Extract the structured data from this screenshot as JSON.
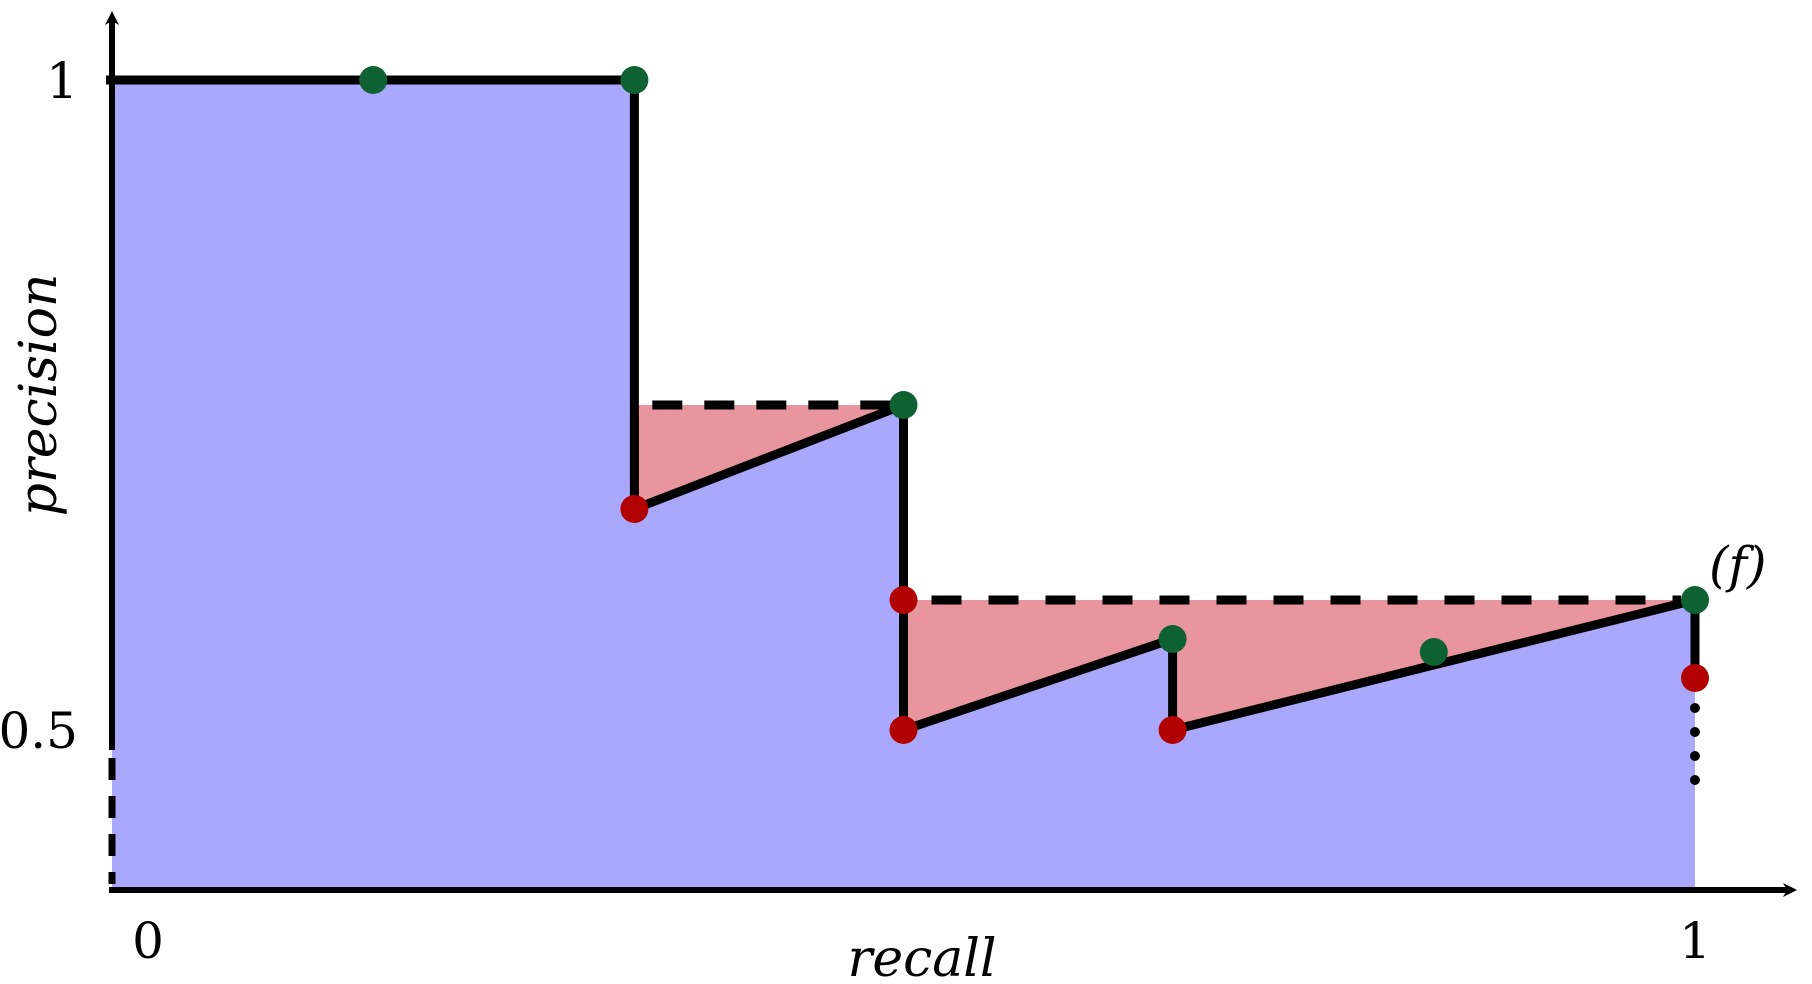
{
  "chart_data": {
    "type": "area",
    "xlabel": "recall",
    "ylabel": "precision",
    "xlim": [
      0,
      1
    ],
    "ylim": [
      0.38,
      1.06
    ],
    "x_ticks": [
      {
        "value": 0,
        "label": "0"
      },
      {
        "value": 1,
        "label": "1"
      }
    ],
    "y_ticks": [
      {
        "value": 1,
        "label": "1"
      },
      {
        "value": 0.5,
        "label": "0.5"
      }
    ],
    "grid": false,
    "legend": "none",
    "colors": {
      "area_under_curve": "#aaa8fd",
      "interpolated_gap": "#e9959e",
      "curve": "#000000",
      "point_positive": "#0e6130",
      "point_negative": "#b10101"
    },
    "pr_curve": [
      {
        "x": 0.0,
        "y": 1.0
      },
      {
        "x": 0.33,
        "y": 1.0
      },
      {
        "x": 0.33,
        "y": 0.67
      },
      {
        "x": 0.5,
        "y": 0.75
      },
      {
        "x": 0.5,
        "y": 0.5
      },
      {
        "x": 0.67,
        "y": 0.57
      },
      {
        "x": 0.67,
        "y": 0.5
      },
      {
        "x": 1.0,
        "y": 0.6
      },
      {
        "x": 1.0,
        "y": 0.54
      }
    ],
    "interpolated_envelope": [
      {
        "x": 0.335,
        "y": 0.75
      },
      {
        "x": 0.5,
        "y": 0.75
      },
      {
        "x": 0.5,
        "y": 0.6
      },
      {
        "x": 1.0,
        "y": 0.6
      }
    ],
    "points": [
      {
        "x": 0.165,
        "y": 1.0,
        "kind": "positive"
      },
      {
        "x": 0.33,
        "y": 1.0,
        "kind": "positive"
      },
      {
        "x": 0.33,
        "y": 0.67,
        "kind": "negative"
      },
      {
        "x": 0.5,
        "y": 0.75,
        "kind": "positive"
      },
      {
        "x": 0.5,
        "y": 0.6,
        "kind": "negative"
      },
      {
        "x": 0.5,
        "y": 0.5,
        "kind": "negative"
      },
      {
        "x": 0.67,
        "y": 0.57,
        "kind": "positive"
      },
      {
        "x": 0.67,
        "y": 0.5,
        "kind": "negative"
      },
      {
        "x": 0.835,
        "y": 0.56,
        "kind": "positive"
      },
      {
        "x": 1.0,
        "y": 0.6,
        "kind": "positive"
      },
      {
        "x": 1.0,
        "y": 0.54,
        "kind": "negative"
      }
    ],
    "annotations": [
      {
        "text": "(f)",
        "x": 1.0,
        "y": 0.6
      }
    ]
  }
}
